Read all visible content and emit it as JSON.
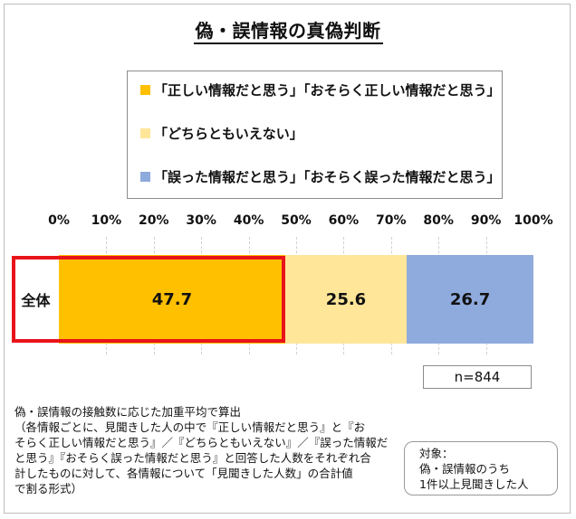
{
  "title": "偽・誤情報の真偽判断",
  "legend": {
    "items": [
      {
        "label": "「正しい情報だと思う」「おそらく正しい情報だと思う」",
        "color": "#ffc000"
      },
      {
        "label": "「どちらともいえない」",
        "color": "#ffe699"
      },
      {
        "label": "「誤った情報だと思う」「おそらく誤った情報だと思う」",
        "color": "#8faadc"
      }
    ]
  },
  "chart_data": {
    "type": "bar",
    "orientation": "horizontal-stacked-100",
    "categories": [
      "全体"
    ],
    "series": [
      {
        "name": "「正しい情報だと思う」「おそらく正しい情報だと思う」",
        "values": [
          47.7
        ],
        "color": "#ffc000"
      },
      {
        "name": "「どちらともいえない」",
        "values": [
          25.6
        ],
        "color": "#ffe699"
      },
      {
        "name": "「誤った情報だと思う」「おそらく誤った情報だと思う」",
        "values": [
          26.7
        ],
        "color": "#8faadc"
      }
    ],
    "data_labels": [
      "47.7",
      "25.6",
      "26.7"
    ],
    "xlim": [
      0,
      100
    ],
    "xticks": [
      "0%",
      "10%",
      "20%",
      "30%",
      "40%",
      "50%",
      "60%",
      "70%",
      "80%",
      "90%",
      "100%"
    ],
    "legend_position": "top",
    "highlight": "「正しい情報だと思う」「おそらく正しい情報だと思う」"
  },
  "sample_size": "n=844",
  "note": {
    "lines": [
      "偽・誤情報の接触数に応じた加重平均で算出",
      "（各情報ごとに、見聞きした人の中で『正しい情報だと思う』と『お",
      "そらく正しい情報だと思う』／『どちらともいえない』／『誤った情報だ",
      "と思う』『おそらく誤った情報だと思う』と回答した人数をそれぞれ合",
      "計したものに対して、各情報について「見聞きした人数」の合計値",
      "で割る形式）"
    ]
  },
  "target": {
    "lines": [
      "対象：",
      "偽・誤情報のうち",
      "1件以上見聞きした人"
    ]
  }
}
